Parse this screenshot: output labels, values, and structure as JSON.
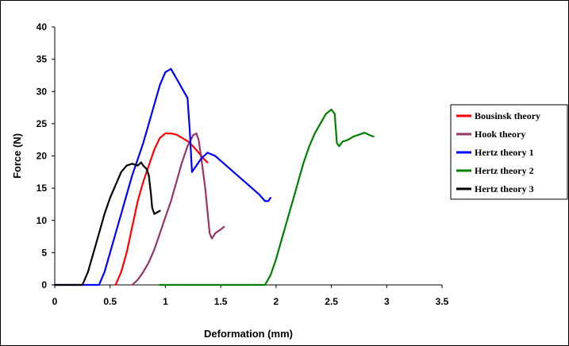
{
  "chart_data": {
    "type": "line",
    "title": "",
    "xlabel": "Deformation (mm)",
    "ylabel": "Force (N)",
    "xlim": [
      0,
      3.5
    ],
    "ylim": [
      0,
      40
    ],
    "x_ticks": [
      "0",
      "0.5",
      "1",
      "1.5",
      "2",
      "2.5",
      "3",
      "3.5"
    ],
    "y_ticks": [
      "0",
      "5",
      "10",
      "15",
      "20",
      "25",
      "30",
      "35",
      "40"
    ],
    "grid": false,
    "legend_position": "right",
    "series": [
      {
        "name": "Bousinsk theory",
        "color": "#ff0000",
        "points": [
          [
            0.55,
            0
          ],
          [
            0.6,
            2
          ],
          [
            0.65,
            5
          ],
          [
            0.7,
            9
          ],
          [
            0.75,
            13
          ],
          [
            0.8,
            16
          ],
          [
            0.85,
            18.5
          ],
          [
            0.9,
            21
          ],
          [
            0.95,
            22.8
          ],
          [
            1.0,
            23.5
          ],
          [
            1.05,
            23.5
          ],
          [
            1.1,
            23.3
          ],
          [
            1.15,
            22.8
          ],
          [
            1.2,
            22.3
          ],
          [
            1.25,
            21.5
          ],
          [
            1.3,
            20.5
          ],
          [
            1.35,
            19.5
          ],
          [
            1.38,
            19.0
          ]
        ]
      },
      {
        "name": "Hook theory",
        "color": "#993366",
        "points": [
          [
            0.7,
            0
          ],
          [
            0.75,
            0.8
          ],
          [
            0.8,
            2
          ],
          [
            0.85,
            3.5
          ],
          [
            0.9,
            5.5
          ],
          [
            0.95,
            8
          ],
          [
            1.0,
            10.5
          ],
          [
            1.05,
            13
          ],
          [
            1.1,
            16
          ],
          [
            1.15,
            19
          ],
          [
            1.2,
            21.5
          ],
          [
            1.25,
            23.2
          ],
          [
            1.28,
            23.5
          ],
          [
            1.3,
            22.5
          ],
          [
            1.33,
            19
          ],
          [
            1.36,
            15
          ],
          [
            1.38,
            11.5
          ],
          [
            1.4,
            8
          ],
          [
            1.42,
            7.2
          ],
          [
            1.45,
            8
          ],
          [
            1.5,
            8.6
          ],
          [
            1.53,
            9
          ]
        ]
      },
      {
        "name": "Hertz theory 1",
        "color": "#0000ff",
        "points": [
          [
            0.0,
            0
          ],
          [
            0.4,
            0
          ],
          [
            0.45,
            2
          ],
          [
            0.5,
            5
          ],
          [
            0.55,
            8
          ],
          [
            0.6,
            11
          ],
          [
            0.65,
            14
          ],
          [
            0.7,
            17
          ],
          [
            0.75,
            19.5
          ],
          [
            0.8,
            22
          ],
          [
            0.85,
            25
          ],
          [
            0.9,
            28
          ],
          [
            0.95,
            31
          ],
          [
            1.0,
            33
          ],
          [
            1.05,
            33.5
          ],
          [
            1.1,
            32
          ],
          [
            1.15,
            30.5
          ],
          [
            1.2,
            29
          ],
          [
            1.22,
            24
          ],
          [
            1.24,
            17.5
          ],
          [
            1.28,
            18.5
          ],
          [
            1.32,
            19.5
          ],
          [
            1.38,
            20.5
          ],
          [
            1.45,
            20
          ],
          [
            1.55,
            18.5
          ],
          [
            1.65,
            17
          ],
          [
            1.75,
            15.5
          ],
          [
            1.85,
            14
          ],
          [
            1.9,
            13
          ],
          [
            1.93,
            13
          ],
          [
            1.95,
            13.5
          ]
        ]
      },
      {
        "name": "Hertz theory 2",
        "color": "#008000",
        "points": [
          [
            0.95,
            0
          ],
          [
            1.9,
            0
          ],
          [
            1.95,
            1.5
          ],
          [
            2.0,
            4
          ],
          [
            2.05,
            7
          ],
          [
            2.1,
            10
          ],
          [
            2.15,
            13
          ],
          [
            2.2,
            16
          ],
          [
            2.25,
            19
          ],
          [
            2.3,
            21.5
          ],
          [
            2.35,
            23.5
          ],
          [
            2.4,
            25
          ],
          [
            2.45,
            26.5
          ],
          [
            2.5,
            27.2
          ],
          [
            2.53,
            26.5
          ],
          [
            2.55,
            22
          ],
          [
            2.57,
            21.5
          ],
          [
            2.6,
            22.2
          ],
          [
            2.65,
            22.5
          ],
          [
            2.7,
            23
          ],
          [
            2.75,
            23.3
          ],
          [
            2.8,
            23.6
          ],
          [
            2.85,
            23.2
          ],
          [
            2.88,
            23
          ]
        ]
      },
      {
        "name": "Hertz theory 3",
        "color": "#000000",
        "points": [
          [
            0.0,
            0
          ],
          [
            0.25,
            0
          ],
          [
            0.3,
            2
          ],
          [
            0.35,
            5
          ],
          [
            0.4,
            8
          ],
          [
            0.45,
            11
          ],
          [
            0.5,
            13.5
          ],
          [
            0.55,
            15.5
          ],
          [
            0.6,
            17.5
          ],
          [
            0.65,
            18.5
          ],
          [
            0.7,
            18.8
          ],
          [
            0.75,
            18.5
          ],
          [
            0.78,
            19
          ],
          [
            0.8,
            18.5
          ],
          [
            0.83,
            18
          ],
          [
            0.85,
            17
          ],
          [
            0.87,
            14
          ],
          [
            0.88,
            12
          ],
          [
            0.9,
            11
          ],
          [
            0.92,
            11.2
          ],
          [
            0.95,
            11.5
          ]
        ]
      }
    ]
  }
}
